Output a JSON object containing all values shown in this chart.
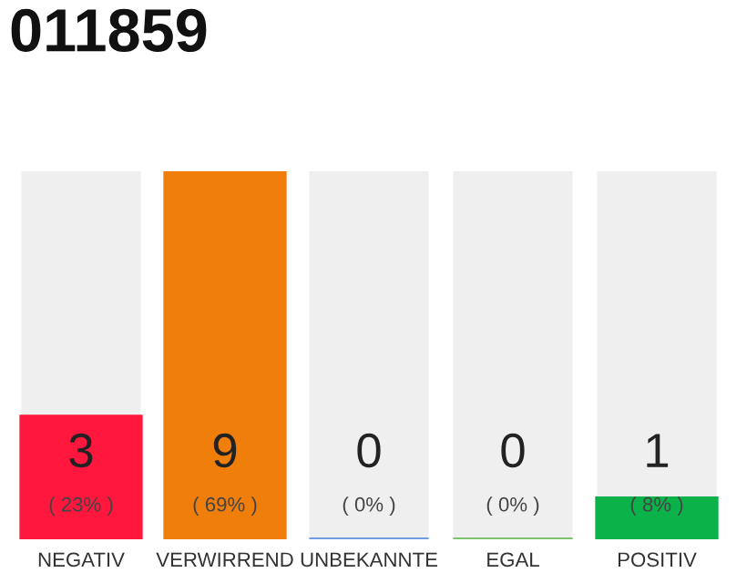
{
  "chart_data": {
    "type": "bar",
    "title": "011859",
    "categories": [
      "NEGATIV",
      "VERWIRREND",
      "UNBEKANNTE",
      "EGAL",
      "POSITIV"
    ],
    "values": [
      3,
      9,
      0,
      0,
      1
    ],
    "colors": [
      "#ff173d",
      "#f07e0b",
      "#6f9fe0",
      "#7cc46c",
      "#0bb249"
    ],
    "value_labels": [
      "3\n( 23% )",
      "9\n( 69% )",
      "0\n( 0% )",
      "0\n( 0% )",
      "1\n( 8% )"
    ],
    "ylim": [
      0,
      9
    ],
    "grid": false,
    "legend": false
  }
}
